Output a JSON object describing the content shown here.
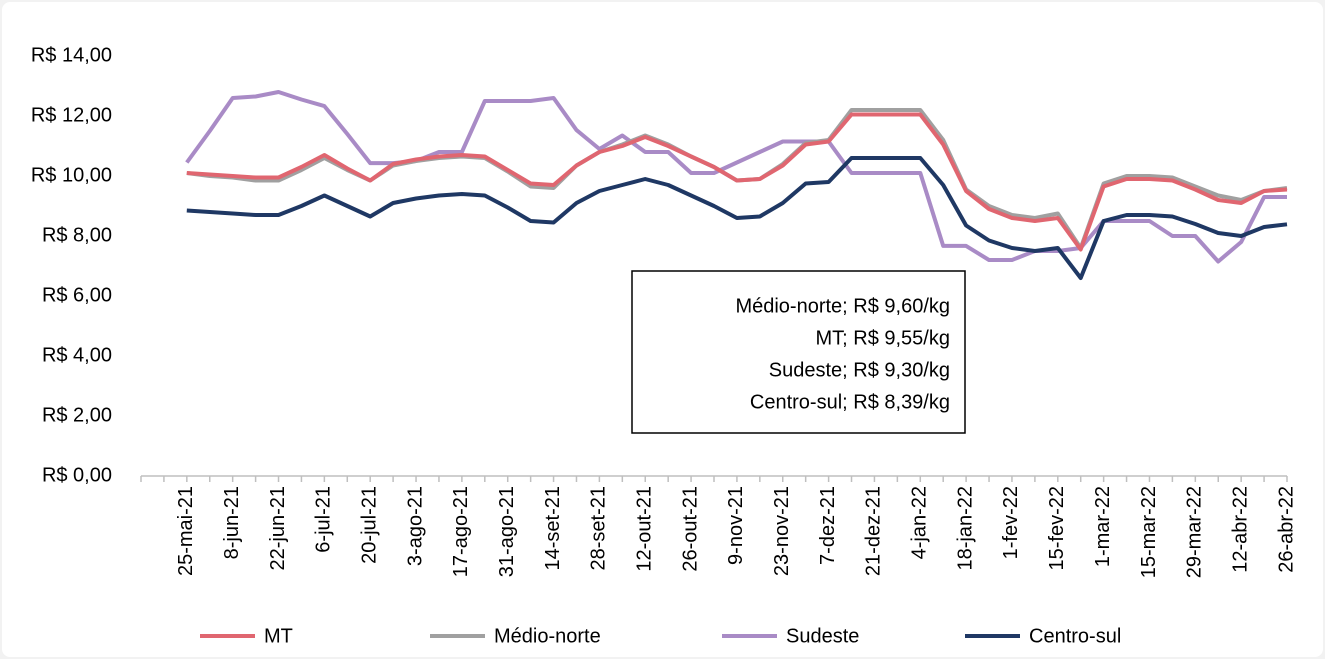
{
  "chart_data": {
    "type": "line",
    "categories": [
      null,
      null,
      "25-mai-21",
      null,
      "8-jun-21",
      null,
      "22-jun-21",
      null,
      "6-jul-21",
      null,
      "20-jul-21",
      null,
      "3-ago-21",
      null,
      "17-ago-21",
      null,
      "31-ago-21",
      null,
      "14-set-21",
      null,
      "28-set-21",
      null,
      "12-out-21",
      null,
      "26-out-21",
      null,
      "9-nov-21",
      null,
      "23-nov-21",
      null,
      "7-dez-21",
      null,
      "21-dez-21",
      null,
      "4-jan-22",
      null,
      "18-jan-22",
      null,
      "1-fev-22",
      null,
      "15-fev-22",
      null,
      "1-mar-22",
      null,
      "15-mar-22",
      null,
      "29-mar-22",
      null,
      "12-abr-22",
      null,
      "26-abr-22"
    ],
    "series": [
      {
        "name": "MT",
        "color": "#e06670",
        "values": [
          null,
          null,
          10.1,
          10.05,
          10.0,
          9.95,
          9.95,
          10.3,
          10.7,
          10.25,
          9.85,
          10.4,
          10.55,
          10.65,
          10.7,
          10.65,
          10.2,
          9.75,
          9.7,
          10.35,
          10.8,
          11.0,
          11.3,
          11.0,
          10.65,
          10.3,
          9.85,
          9.9,
          10.35,
          11.05,
          11.15,
          12.05,
          12.05,
          12.05,
          12.05,
          11.05,
          9.5,
          8.9,
          8.6,
          8.5,
          8.6,
          7.55,
          9.65,
          9.9,
          9.9,
          9.85,
          9.55,
          9.2,
          9.1,
          9.5,
          9.55
        ]
      },
      {
        "name": "Médio-norte",
        "color": "#a0a0a0",
        "values": [
          null,
          null,
          10.1,
          10.0,
          9.95,
          9.85,
          9.85,
          10.2,
          10.6,
          10.2,
          9.85,
          10.35,
          10.5,
          10.6,
          10.65,
          10.6,
          10.15,
          9.65,
          9.6,
          10.35,
          10.8,
          11.05,
          11.35,
          11.05,
          10.65,
          10.3,
          9.85,
          9.9,
          10.4,
          11.1,
          11.2,
          12.2,
          12.2,
          12.2,
          12.2,
          11.2,
          9.55,
          9.0,
          8.7,
          8.6,
          8.75,
          7.6,
          9.75,
          10.0,
          10.0,
          9.95,
          9.65,
          9.35,
          9.2,
          9.5,
          9.6
        ]
      },
      {
        "name": "Sudeste",
        "color": "#a98bc6",
        "values": [
          null,
          null,
          10.45,
          11.5,
          12.6,
          12.65,
          12.8,
          12.55,
          12.33,
          11.4,
          10.43,
          10.43,
          10.5,
          10.8,
          10.8,
          12.5,
          12.5,
          12.5,
          12.6,
          11.53,
          10.9,
          11.35,
          10.8,
          10.8,
          10.1,
          10.1,
          10.45,
          10.8,
          11.15,
          11.15,
          11.15,
          10.1,
          10.1,
          10.1,
          10.1,
          7.67,
          7.67,
          7.2,
          7.2,
          7.5,
          7.5,
          7.6,
          8.5,
          8.5,
          8.5,
          8.0,
          8.0,
          7.15,
          7.8,
          9.3,
          9.3
        ]
      },
      {
        "name": "Centro-sul",
        "color": "#1f3864",
        "values": [
          null,
          null,
          8.85,
          8.8,
          8.75,
          8.7,
          8.7,
          9.0,
          9.35,
          9.0,
          8.65,
          9.1,
          9.25,
          9.35,
          9.4,
          9.35,
          8.95,
          8.5,
          8.45,
          9.1,
          9.5,
          9.7,
          9.9,
          9.7,
          9.35,
          9.0,
          8.6,
          8.65,
          9.1,
          9.75,
          9.8,
          10.6,
          10.6,
          10.6,
          10.6,
          9.7,
          8.35,
          7.85,
          7.6,
          7.5,
          7.6,
          6.6,
          8.5,
          8.7,
          8.7,
          8.65,
          8.4,
          8.1,
          8.0,
          8.3,
          8.39
        ]
      }
    ],
    "ylim": [
      0,
      14
    ],
    "yticks": [
      {
        "value": 0,
        "label": "R$ 0,00"
      },
      {
        "value": 2,
        "label": "R$ 2,00"
      },
      {
        "value": 4,
        "label": "R$ 4,00"
      },
      {
        "value": 6,
        "label": "R$ 6,00"
      },
      {
        "value": 8,
        "label": "R$ 8,00"
      },
      {
        "value": 10,
        "label": "R$ 10,00"
      },
      {
        "value": 12,
        "label": "R$ 12,00"
      },
      {
        "value": 14,
        "label": "R$ 14,00"
      }
    ],
    "annotation": [
      "Médio-norte; R$ 9,60/kg",
      "MT; R$ 9,55/kg",
      "Sudeste; R$ 9,30/kg",
      "Centro-sul; R$ 8,39/kg"
    ],
    "legend": "bottom",
    "grid": false
  }
}
